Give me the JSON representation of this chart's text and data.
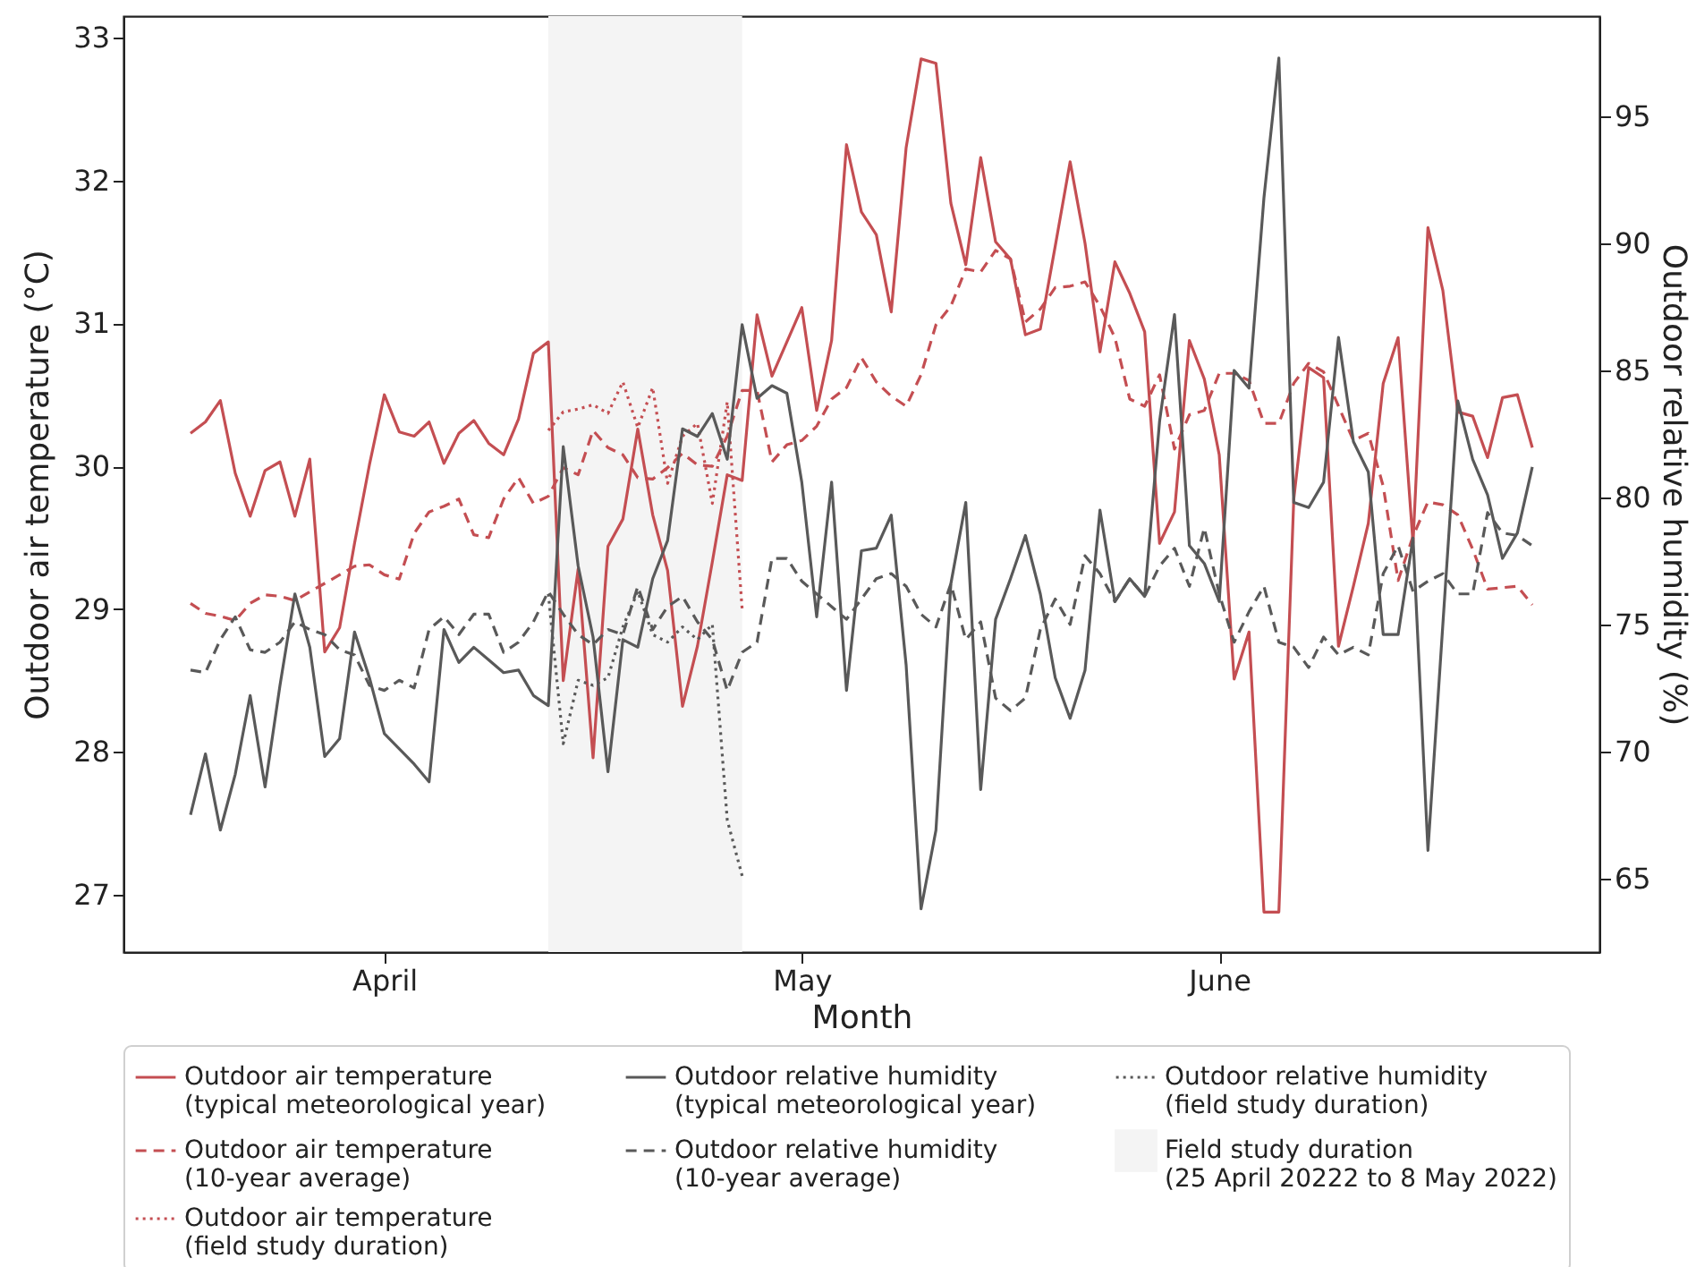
{
  "chart_data": {
    "type": "line",
    "xlabel": "Month",
    "ylabel": "Outdoor air temperature (°C)",
    "y2label": "Outdoor relative humidity (%)",
    "x": [
      "2022-04-01",
      "2022-04-02",
      "2022-04-03",
      "2022-04-04",
      "2022-04-05",
      "2022-04-06",
      "2022-04-07",
      "2022-04-08",
      "2022-04-09",
      "2022-04-10",
      "2022-04-11",
      "2022-04-12",
      "2022-04-13",
      "2022-04-14",
      "2022-04-15",
      "2022-04-16",
      "2022-04-17",
      "2022-04-18",
      "2022-04-19",
      "2022-04-20",
      "2022-04-21",
      "2022-04-22",
      "2022-04-23",
      "2022-04-24",
      "2022-04-25",
      "2022-04-26",
      "2022-04-27",
      "2022-04-28",
      "2022-04-29",
      "2022-04-30",
      "2022-05-01",
      "2022-05-02",
      "2022-05-03",
      "2022-05-04",
      "2022-05-05",
      "2022-05-06",
      "2022-05-07",
      "2022-05-08",
      "2022-05-09",
      "2022-05-10",
      "2022-05-11",
      "2022-05-12",
      "2022-05-13",
      "2022-05-14",
      "2022-05-15",
      "2022-05-16",
      "2022-05-17",
      "2022-05-18",
      "2022-05-19",
      "2022-05-20",
      "2022-05-21",
      "2022-05-22",
      "2022-05-23",
      "2022-05-24",
      "2022-05-25",
      "2022-05-26",
      "2022-05-27",
      "2022-05-28",
      "2022-05-29",
      "2022-05-30",
      "2022-05-31",
      "2022-06-01",
      "2022-06-02",
      "2022-06-03",
      "2022-06-04",
      "2022-06-05",
      "2022-06-06",
      "2022-06-07",
      "2022-06-08",
      "2022-06-09",
      "2022-06-10",
      "2022-06-11",
      "2022-06-12",
      "2022-06-13",
      "2022-06-14",
      "2022-06-15",
      "2022-06-16",
      "2022-06-17",
      "2022-06-18",
      "2022-06-19",
      "2022-06-20",
      "2022-06-21",
      "2022-06-22",
      "2022-06-23",
      "2022-06-24",
      "2022-06-25",
      "2022-06-26",
      "2022-06-27",
      "2022-06-28",
      "2022-06-29",
      "2022-06-30"
    ],
    "xlim": [
      "2022-03-27T12:00",
      "2022-07-04T12:00"
    ],
    "xticks": [
      {
        "value": "2022-04-14",
        "label": "April"
      },
      {
        "value": "2022-05-12",
        "label": "May"
      },
      {
        "value": "2022-06-09",
        "label": "June"
      }
    ],
    "ylim": [
      26.6,
      33.15
    ],
    "yticks": [
      27,
      28,
      29,
      30,
      31,
      32,
      33
    ],
    "y2lim": [
      62.1,
      98.95
    ],
    "y2ticks": [
      65,
      70,
      75,
      80,
      85,
      90,
      95
    ],
    "grid": false,
    "legend": "bottom",
    "marker": "none",
    "bands": [
      {
        "axis": "x",
        "from": "2022-04-25",
        "to": "2022-05-08",
        "label": "Field study duration\n(25 April 20222 to 8 May 2022)",
        "color": "#f4f4f4"
      }
    ],
    "series": [
      {
        "name": "Outdoor air temperature\n(typical meteorological year)",
        "color": "#c44e52",
        "line_style": "solid",
        "values": [
          30.23,
          30.31,
          30.46,
          29.95,
          29.65,
          29.97,
          30.03,
          29.65,
          30.05,
          28.7,
          28.87,
          29.46,
          30.01,
          30.5,
          30.24,
          30.21,
          30.31,
          30.02,
          30.23,
          30.32,
          30.16,
          30.08,
          30.33,
          30.79,
          30.87,
          28.5,
          29.28,
          27.96,
          29.44,
          29.63,
          30.26,
          29.66,
          29.27,
          28.32,
          28.74,
          29.33,
          29.94,
          29.9,
          31.06,
          30.63,
          30.87,
          31.11,
          30.39,
          30.88,
          32.25,
          31.78,
          31.62,
          31.08,
          32.23,
          32.85,
          32.82,
          31.84,
          31.41,
          32.16,
          31.57,
          31.45,
          30.92,
          30.96,
          31.54,
          32.13,
          31.56,
          30.8,
          31.43,
          31.21,
          30.94,
          29.46,
          29.68,
          30.88,
          30.61,
          30.08,
          28.51,
          28.84,
          26.88,
          26.88,
          29.77,
          30.69,
          30.62,
          28.74,
          29.16,
          29.6,
          30.58,
          30.9,
          29.46,
          31.67,
          31.23,
          30.38,
          30.35,
          30.06,
          30.48,
          30.5,
          30.13
        ]
      },
      {
        "name": "Outdoor air temperature\n(10-year average)",
        "color": "#c44e52",
        "line_style": "dashed",
        "values": [
          29.04,
          28.97,
          28.95,
          28.92,
          29.04,
          29.1,
          29.09,
          29.06,
          29.12,
          29.18,
          29.24,
          29.3,
          29.31,
          29.24,
          29.21,
          29.53,
          29.68,
          29.72,
          29.77,
          29.52,
          29.5,
          29.77,
          29.92,
          29.74,
          29.79,
          29.99,
          29.94,
          30.25,
          30.13,
          30.08,
          29.92,
          29.91,
          29.99,
          30.09,
          30.01,
          30.0,
          30.21,
          30.53,
          30.53,
          30.03,
          30.15,
          30.18,
          30.28,
          30.47,
          30.55,
          30.76,
          30.59,
          30.49,
          30.42,
          30.64,
          30.99,
          31.12,
          31.38,
          31.36,
          31.51,
          31.45,
          31.01,
          31.1,
          31.25,
          31.26,
          31.29,
          31.12,
          30.9,
          30.47,
          30.42,
          30.64,
          30.12,
          30.36,
          30.39,
          30.65,
          30.65,
          30.6,
          30.3,
          30.3,
          30.58,
          30.72,
          30.66,
          30.42,
          30.18,
          30.23,
          29.86,
          29.2,
          29.51,
          29.75,
          29.73,
          29.66,
          29.42,
          29.14,
          29.15,
          29.16,
          29.03
        ]
      },
      {
        "name": "Outdoor air temperature\n(field study duration)",
        "color": "#c44e52",
        "line_style": "dotted",
        "x": [
          "2022-04-25",
          "2022-04-26",
          "2022-04-27",
          "2022-04-28",
          "2022-04-29",
          "2022-04-30",
          "2022-05-01",
          "2022-05-02",
          "2022-05-03",
          "2022-05-04",
          "2022-05-05",
          "2022-05-06",
          "2022-05-07",
          "2022-05-08"
        ],
        "values": [
          30.25,
          30.38,
          30.4,
          30.43,
          30.37,
          30.59,
          30.27,
          30.55,
          29.88,
          30.21,
          30.3,
          29.74,
          30.45,
          29.0
        ]
      },
      {
        "name": "Outdoor relative humidity\n(typical meteorological year)",
        "color": "#595959",
        "line_style": "solid",
        "axis": "y2",
        "values": [
          67.5,
          69.9,
          66.9,
          69.1,
          72.2,
          68.6,
          72.6,
          76.2,
          74.1,
          69.8,
          70.5,
          74.7,
          72.9,
          70.7,
          70.1,
          69.5,
          68.8,
          74.8,
          73.5,
          74.1,
          73.6,
          73.1,
          73.2,
          72.2,
          71.8,
          82.0,
          77.3,
          74.5,
          69.2,
          74.4,
          74.1,
          76.8,
          78.3,
          82.7,
          82.4,
          83.3,
          81.5,
          86.8,
          83.9,
          84.4,
          84.1,
          80.6,
          75.3,
          80.6,
          72.4,
          77.9,
          78.0,
          79.3,
          73.4,
          63.8,
          66.9,
          76.6,
          79.8,
          68.5,
          75.2,
          76.8,
          78.5,
          76.2,
          72.9,
          71.3,
          73.2,
          79.5,
          75.9,
          76.8,
          76.1,
          83.0,
          87.2,
          78.1,
          77.4,
          75.9,
          85.0,
          84.3,
          91.8,
          97.3,
          79.8,
          79.6,
          80.6,
          86.3,
          82.2,
          81.0,
          74.6,
          74.6,
          78.4,
          66.1,
          75.0,
          83.8,
          81.5,
          80.1,
          77.6,
          78.6,
          81.2
        ]
      },
      {
        "name": "Outdoor relative humidity\n(10-year average)",
        "color": "#595959",
        "line_style": "dashed",
        "axis": "y2",
        "values": [
          73.2,
          73.1,
          74.4,
          75.3,
          74.0,
          73.9,
          74.3,
          75.1,
          74.8,
          74.6,
          74.0,
          73.8,
          72.6,
          72.4,
          72.8,
          72.5,
          74.8,
          75.3,
          74.6,
          75.4,
          75.4,
          73.9,
          74.3,
          75.1,
          76.3,
          75.4,
          74.6,
          74.2,
          74.8,
          74.6,
          76.5,
          74.8,
          75.7,
          76.1,
          75.1,
          74.4,
          72.4,
          73.9,
          74.3,
          77.6,
          77.6,
          76.7,
          76.2,
          75.7,
          75.2,
          76.0,
          76.8,
          77.0,
          76.5,
          75.4,
          74.9,
          76.6,
          74.4,
          75.1,
          72.1,
          71.6,
          72.1,
          74.8,
          76.0,
          75.0,
          77.7,
          77.0,
          75.9,
          76.8,
          76.1,
          77.3,
          78.0,
          76.5,
          78.8,
          76.2,
          74.3,
          75.5,
          76.5,
          74.3,
          74.1,
          73.3,
          74.5,
          73.8,
          74.1,
          73.8,
          77.0,
          78.1,
          76.3,
          76.7,
          77.0,
          76.2,
          76.2,
          79.4,
          78.6,
          78.5,
          78.1
        ]
      },
      {
        "name": "Outdoor relative humidity\n(field study duration)",
        "color": "#595959",
        "line_style": "dotted",
        "axis": "y2",
        "x": [
          "2022-04-25",
          "2022-04-26",
          "2022-04-27",
          "2022-04-28",
          "2022-04-29",
          "2022-04-30",
          "2022-05-01",
          "2022-05-02",
          "2022-05-03",
          "2022-05-04",
          "2022-05-05",
          "2022-05-06",
          "2022-05-07",
          "2022-05-08"
        ],
        "values": [
          76.2,
          70.3,
          72.8,
          72.6,
          72.9,
          74.9,
          76.3,
          74.6,
          74.3,
          74.9,
          74.4,
          75.0,
          67.3,
          65.1
        ]
      }
    ]
  }
}
